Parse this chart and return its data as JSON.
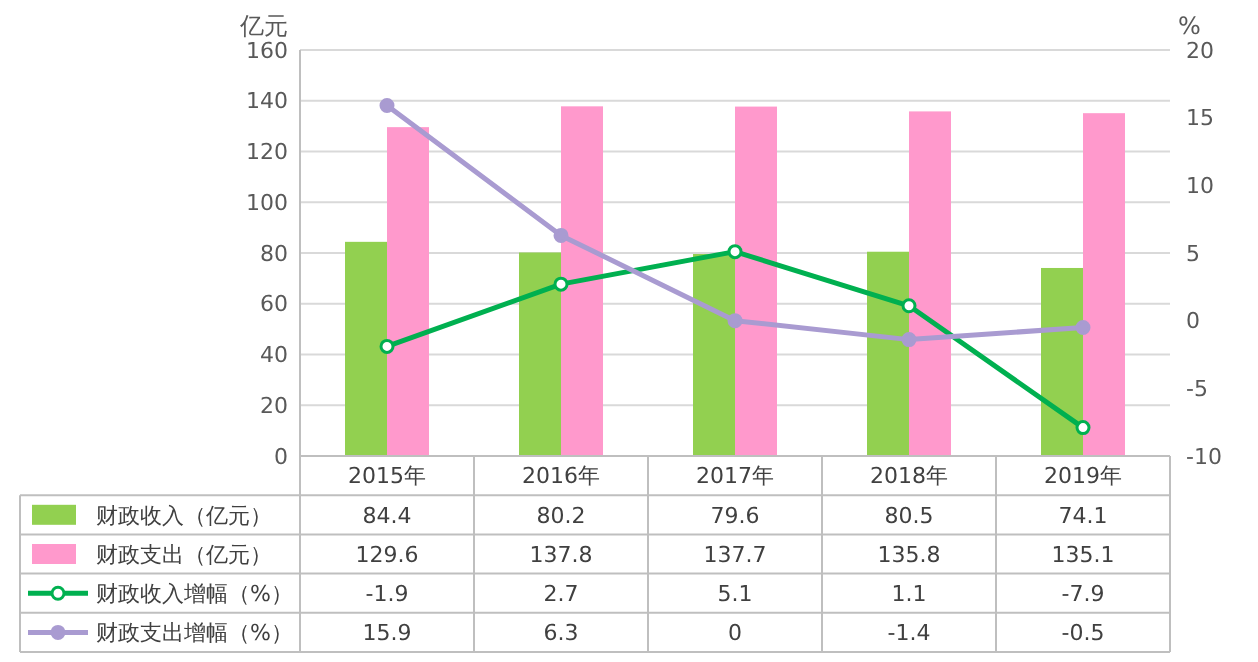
{
  "chart_data": {
    "type": "bar",
    "ylabel": "亿元",
    "y2label": "%",
    "categories": [
      "2015年",
      "2016年",
      "2017年",
      "2018年",
      "2019年"
    ],
    "series": [
      {
        "name": "财政收入（亿元）",
        "color": "#92d050",
        "values": [
          84.4,
          80.2,
          79.6,
          80.5,
          74.1
        ]
      },
      {
        "name": "财政支出（亿元）",
        "color": "#ff99cc",
        "values": [
          129.6,
          137.8,
          137.7,
          135.8,
          135.1
        ]
      },
      {
        "name": "财政收入增幅（%）",
        "type": "line",
        "axis": "y2",
        "color": "#00b050",
        "values": [
          -1.9,
          2.7,
          5.1,
          1.1,
          -7.9
        ]
      },
      {
        "name": "财政支出增幅（%）",
        "type": "line",
        "axis": "y2",
        "color": "#a99bd1",
        "values": [
          15.9,
          6.3,
          0,
          -1.4,
          -0.5
        ]
      }
    ],
    "ylim": [
      0,
      160
    ],
    "yticks": [
      0,
      20,
      40,
      60,
      80,
      100,
      120,
      140,
      160
    ],
    "y2lim": [
      -10,
      20
    ],
    "y2ticks": [
      -10,
      -5,
      0,
      5,
      10,
      15,
      20
    ],
    "grid": "y",
    "legend": "bottom",
    "marker": "circle",
    "line_style": "solid",
    "data_labels": true
  }
}
